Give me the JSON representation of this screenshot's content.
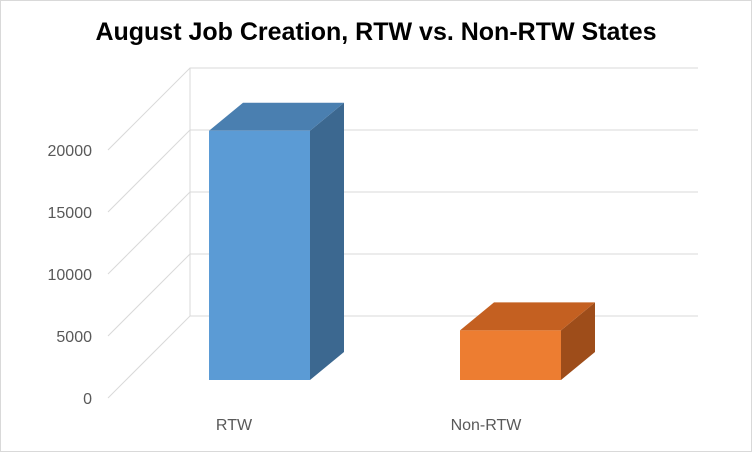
{
  "chart_data": {
    "type": "bar",
    "title": "August Job Creation, RTW vs. Non-RTW States",
    "categories": [
      "RTW",
      "Non-RTW"
    ],
    "values": [
      20100,
      4000
    ],
    "ylim": [
      0,
      20000
    ],
    "yticks": [
      0,
      5000,
      10000,
      15000,
      20000
    ],
    "grid": true,
    "legend": "none",
    "bar_colors": [
      {
        "front": "#5b9bd5",
        "top": "#4a7fb0",
        "side": "#3c6890"
      },
      {
        "front": "#ed7d31",
        "top": "#c46021",
        "side": "#9e4d1a"
      }
    ]
  }
}
